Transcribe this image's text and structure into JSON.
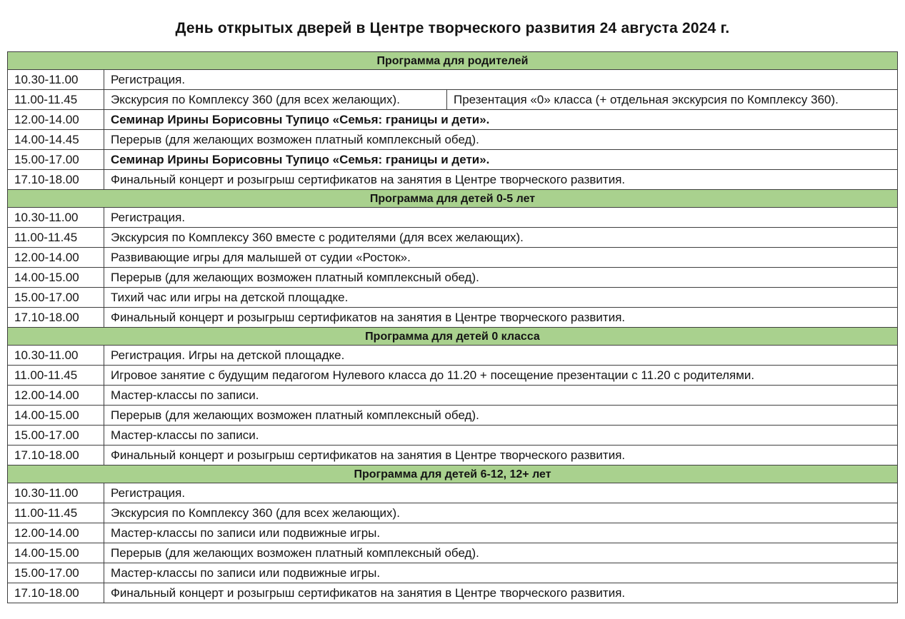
{
  "title": "День открытых дверей в Центре творческого развития 24 августа 2024 г.",
  "colors": {
    "section_header_bg": "#a9d18e",
    "border": "#3f3f3f",
    "text": "#141414"
  },
  "sections": [
    {
      "header": "Программа для родителей",
      "rows": [
        {
          "time": "10.30-11.00",
          "cells": [
            "Регистрация."
          ]
        },
        {
          "time": "11.00-11.45",
          "cells": [
            "Экскурсия по Комплексу 360 (для всех желающих).",
            "Презентация «0» класса (+ отдельная экскурсия по Комплексу 360)."
          ]
        },
        {
          "time": "12.00-14.00",
          "cells": [
            "Семинар Ирины Борисовны Тупицо «Семья: границы и дети»."
          ],
          "bold": true
        },
        {
          "time": "14.00-14.45",
          "cells": [
            "Перерыв (для желающих возможен платный комплексный обед)."
          ]
        },
        {
          "time": "15.00-17.00",
          "cells": [
            "Семинар Ирины Борисовны Тупицо «Семья: границы и дети»."
          ],
          "bold": true
        },
        {
          "time": "17.10-18.00",
          "cells": [
            "Финальный концерт и розыгрыш сертификатов на занятия в Центре творческого развития."
          ]
        }
      ]
    },
    {
      "header": "Программа для детей 0-5 лет",
      "rows": [
        {
          "time": "10.30-11.00",
          "cells": [
            "Регистрация."
          ]
        },
        {
          "time": "11.00-11.45",
          "cells": [
            "Экскурсия по Комплексу 360 вместе с родителями (для всех желающих)."
          ]
        },
        {
          "time": "12.00-14.00",
          "cells": [
            "Развивающие игры для малышей от судии «Росток»."
          ]
        },
        {
          "time": "14.00-15.00",
          "cells": [
            "Перерыв (для желающих возможен платный комплексный обед)."
          ]
        },
        {
          "time": "15.00-17.00",
          "cells": [
            "Тихий час или игры на детской площадке."
          ]
        },
        {
          "time": "17.10-18.00",
          "cells": [
            "Финальный концерт и розыгрыш сертификатов на занятия в Центре творческого развития."
          ]
        }
      ]
    },
    {
      "header": "Программа для детей 0 класса",
      "rows": [
        {
          "time": "10.30-11.00",
          "cells": [
            "Регистрация. Игры на детской площадке."
          ]
        },
        {
          "time": "11.00-11.45",
          "cells": [
            "Игровое занятие с будущим педагогом Нулевого класса до 11.20 + посещение презентации с 11.20 с родителями."
          ]
        },
        {
          "time": "12.00-14.00",
          "cells": [
            "Мастер-классы по записи."
          ]
        },
        {
          "time": "14.00-15.00",
          "cells": [
            "Перерыв (для желающих возможен платный комплексный обед)."
          ]
        },
        {
          "time": "15.00-17.00",
          "cells": [
            "Мастер-классы по записи."
          ]
        },
        {
          "time": "17.10-18.00",
          "cells": [
            "Финальный концерт и розыгрыш сертификатов на занятия в Центре творческого развития."
          ]
        }
      ]
    },
    {
      "header": "Программа для детей 6-12, 12+ лет",
      "rows": [
        {
          "time": "10.30-11.00",
          "cells": [
            "Регистрация."
          ]
        },
        {
          "time": "11.00-11.45",
          "cells": [
            "Экскурсия по Комплексу 360 (для всех желающих)."
          ]
        },
        {
          "time": "12.00-14.00",
          "cells": [
            "Мастер-классы по записи или подвижные игры."
          ]
        },
        {
          "time": "14.00-15.00",
          "cells": [
            "Перерыв (для желающих возможен платный комплексный обед)."
          ]
        },
        {
          "time": "15.00-17.00",
          "cells": [
            "Мастер-классы по записи или подвижные игры."
          ]
        },
        {
          "time": "17.10-18.00",
          "cells": [
            "Финальный концерт и розыгрыш сертификатов на занятия в Центре творческого развития."
          ]
        }
      ]
    }
  ]
}
